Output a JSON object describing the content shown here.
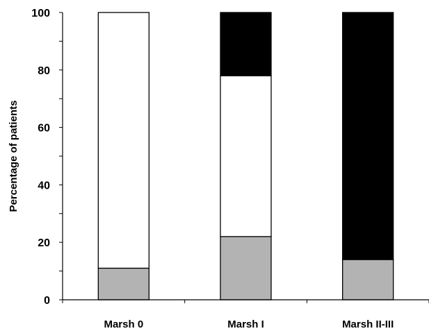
{
  "chart_data": {
    "type": "bar",
    "stacked": true,
    "categories": [
      "Marsh 0",
      "Marsh I",
      "Marsh II-III"
    ],
    "series": [
      {
        "color": "#b3b3b3",
        "values": [
          11,
          22,
          14
        ]
      },
      {
        "color": "#ffffff",
        "values": [
          89,
          56,
          0
        ]
      },
      {
        "color": "#000000",
        "values": [
          0,
          22,
          86
        ]
      }
    ],
    "ylabel": "Percentage of patients",
    "xlabel": "",
    "ylim": [
      0,
      100
    ],
    "yticks": [
      "0",
      "20",
      "40",
      "60",
      "80",
      "100"
    ],
    "grid": false,
    "legend": "none"
  }
}
